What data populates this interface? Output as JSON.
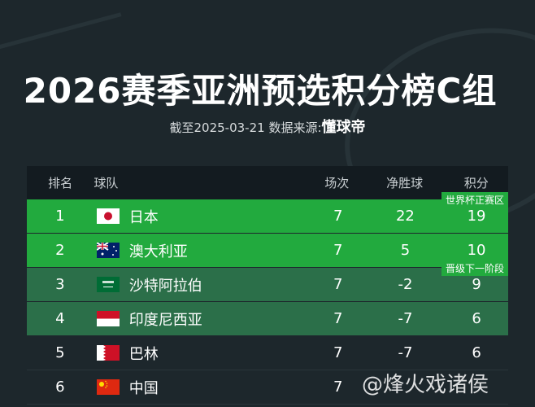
{
  "title": "2026赛季亚洲预选积分榜C组",
  "subtitle": {
    "prefix": "截至2025-03-21 数据来源:",
    "source": "懂球帝"
  },
  "headers": {
    "rank": "排名",
    "team": "球队",
    "played": "场次",
    "gd": "净胜球",
    "points": "积分"
  },
  "badges": {
    "world_cup": "世界杯正赛区",
    "next_stage": "晋级下一阶段"
  },
  "rows": [
    {
      "rank": "1",
      "team": "日本",
      "flag": "japan-flag",
      "played": "7",
      "gd": "22",
      "points": "19"
    },
    {
      "rank": "2",
      "team": "澳大利亚",
      "flag": "australia-flag",
      "played": "7",
      "gd": "5",
      "points": "10"
    },
    {
      "rank": "3",
      "team": "沙特阿拉伯",
      "flag": "saudi-arabia-flag",
      "played": "7",
      "gd": "-2",
      "points": "9"
    },
    {
      "rank": "4",
      "team": "印度尼西亚",
      "flag": "indonesia-flag",
      "played": "7",
      "gd": "-7",
      "points": "6"
    },
    {
      "rank": "5",
      "team": "巴林",
      "flag": "bahrain-flag",
      "played": "7",
      "gd": "-7",
      "points": "6"
    },
    {
      "rank": "6",
      "team": "中国",
      "flag": "china-flag",
      "played": "7",
      "gd": "",
      "points": ""
    }
  ],
  "watermark": "@烽火戏诸侯",
  "colors": {
    "qualified": "#22aa3e",
    "next_stage": "#2b6f49",
    "background": "#1d272c"
  }
}
